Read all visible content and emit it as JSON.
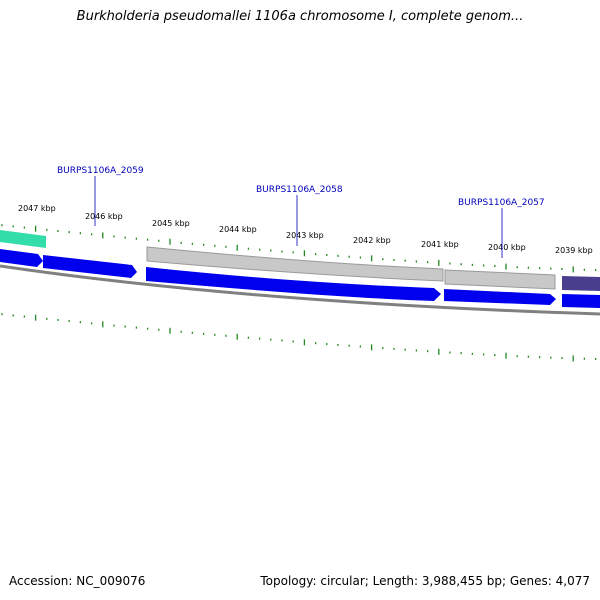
{
  "title": "Burkholderia pseudomallei 1106a chromosome I, complete genom...",
  "footer": {
    "accession": "Accession: NC_009076",
    "summary": "Topology: circular; Length: 3,988,455 bp; Genes: 4,077"
  },
  "ruler_labels": [
    "2047 kbp",
    "2046 kbp",
    "2045 kbp",
    "2044 kbp",
    "2043 kbp",
    "2042 kbp",
    "2041 kbp",
    "2040 kbp",
    "2039 kbp"
  ],
  "gene_labels": [
    "BURPS1106A_2059",
    "BURPS1106A_2058",
    "BURPS1106A_2057"
  ],
  "colors": {
    "cds": "#0000ee",
    "gene_gray": "#c8c8c8",
    "gene_green": "#33ddaa",
    "gene_purple": "#4a3f8f",
    "backbone": "#808080",
    "tick": "#228822",
    "label": "#0000bb"
  }
}
